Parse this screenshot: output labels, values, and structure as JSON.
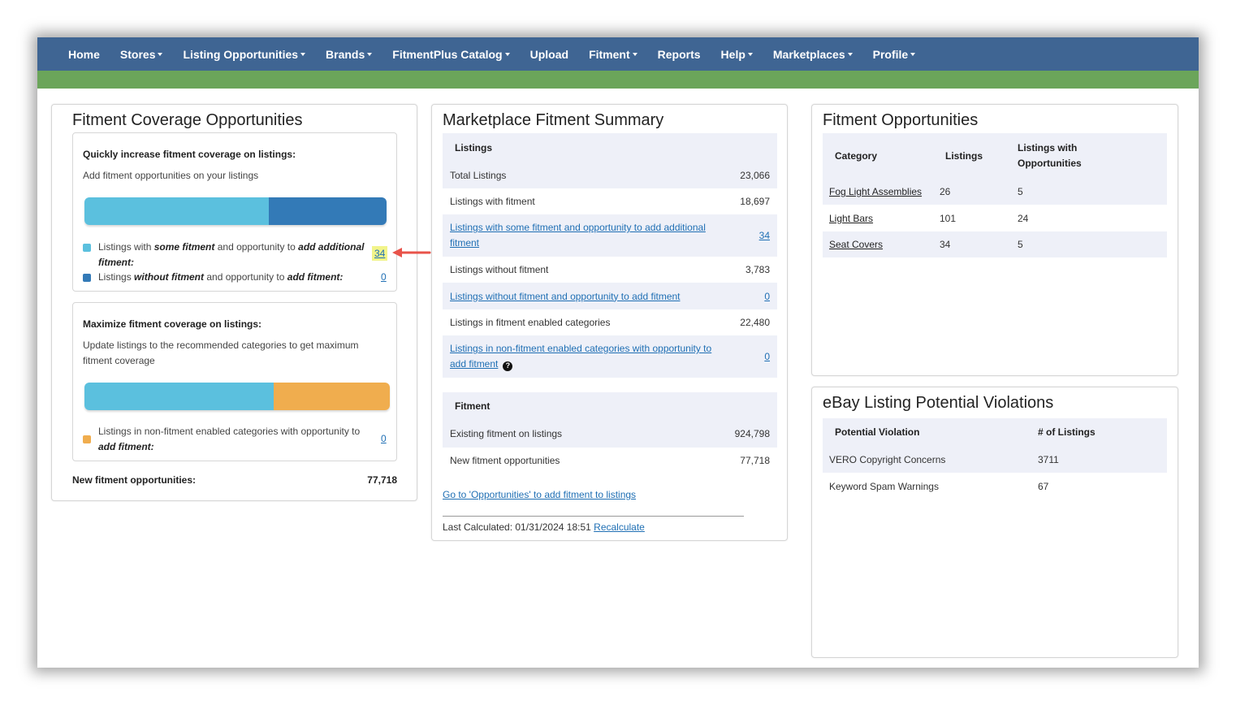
{
  "nav": {
    "items": [
      {
        "label": "Home",
        "dropdown": false
      },
      {
        "label": "Stores",
        "dropdown": true
      },
      {
        "label": "Listing Opportunities",
        "dropdown": true
      },
      {
        "label": "Brands",
        "dropdown": true
      },
      {
        "label": "FitmentPlus Catalog",
        "dropdown": true
      },
      {
        "label": "Upload",
        "dropdown": false
      },
      {
        "label": "Fitment",
        "dropdown": true
      },
      {
        "label": "Reports",
        "dropdown": false
      },
      {
        "label": "Help",
        "dropdown": true
      },
      {
        "label": "Marketplaces",
        "dropdown": true
      },
      {
        "label": "Profile",
        "dropdown": true
      }
    ]
  },
  "coverage": {
    "title": "Fitment Coverage Opportunities",
    "quick": {
      "heading": "Quickly increase fitment coverage on listings:",
      "subtext": "Add fitment opportunities on your listings",
      "bar_fraction": 0.61,
      "legend1_a": "Listings with ",
      "legend1_b": "some fitment",
      "legend1_c": " and opportunity to ",
      "legend1_d": "add additional fitment:",
      "legend1_value": "34",
      "legend2_a": "Listings ",
      "legend2_b": "without fitment",
      "legend2_c": " and opportunity to ",
      "legend2_d": "add fitment:",
      "legend2_value": "0"
    },
    "maximize": {
      "heading": "Maximize fitment coverage on listings:",
      "subtext": "Update listings to the recommended categories to get maximum fitment coverage",
      "bar_fraction": 0.62,
      "legend_a": "Listings in non-fitment enabled categories with opportunity to ",
      "legend_b": "add fitment:",
      "legend_value": "0"
    },
    "total_label": "New fitment opportunities:",
    "total_value": "77,718"
  },
  "summary": {
    "title": "Marketplace Fitment Summary",
    "listings_header": "Listings",
    "rows": [
      {
        "label": "Total Listings",
        "value": "23,066"
      },
      {
        "label": "Listings with fitment",
        "value": "18,697"
      },
      {
        "label": "Listings with some fitment and opportunity to add additional fitment",
        "value": "34"
      },
      {
        "label": "Listings without fitment",
        "value": "3,783"
      },
      {
        "label": "Listings without fitment and opportunity to add fitment",
        "value": "0"
      },
      {
        "label": "Listings in fitment enabled categories",
        "value": "22,480"
      },
      {
        "label": "Listings in non-fitment enabled categories with opportunity to add fitment",
        "value": "0"
      }
    ],
    "fitment_header": "Fitment",
    "fitment_rows": [
      {
        "label": "Existing fitment on listings",
        "value": "924,798"
      },
      {
        "label": "New fitment opportunities",
        "value": "77,718"
      }
    ],
    "goto_link": "Go to 'Opportunities' to add fitment to listings",
    "last_calc_label": "Last Calculated: 01/31/2024 18:51",
    "recalc_link": "Recalculate"
  },
  "opportunities": {
    "title": "Fitment Opportunities",
    "headers": [
      "Category",
      "Listings",
      "Listings with Opportunities"
    ],
    "rows": [
      {
        "category": "Fog Light Assemblies",
        "listings": "26",
        "opps": "5"
      },
      {
        "category": "Light Bars",
        "listings": "101",
        "opps": "24"
      },
      {
        "category": "Seat Covers",
        "listings": "34",
        "opps": "5"
      }
    ]
  },
  "violations": {
    "title": "eBay Listing Potential Violations",
    "headers": [
      "Potential Violation",
      "# of Listings"
    ],
    "rows": [
      {
        "violation": "VERO Copyright Concerns",
        "count": "3711"
      },
      {
        "violation": "Keyword Spam Warnings",
        "count": "67"
      }
    ]
  },
  "colors": {
    "nav": "#3f6593",
    "green": "#6ba55a",
    "light_blue": "#5bc0de",
    "dark_blue": "#337ab7",
    "orange": "#f0ad4e",
    "link": "#1f6fb4",
    "highlight": "#f2f48a",
    "arrow": "#e8534a"
  }
}
